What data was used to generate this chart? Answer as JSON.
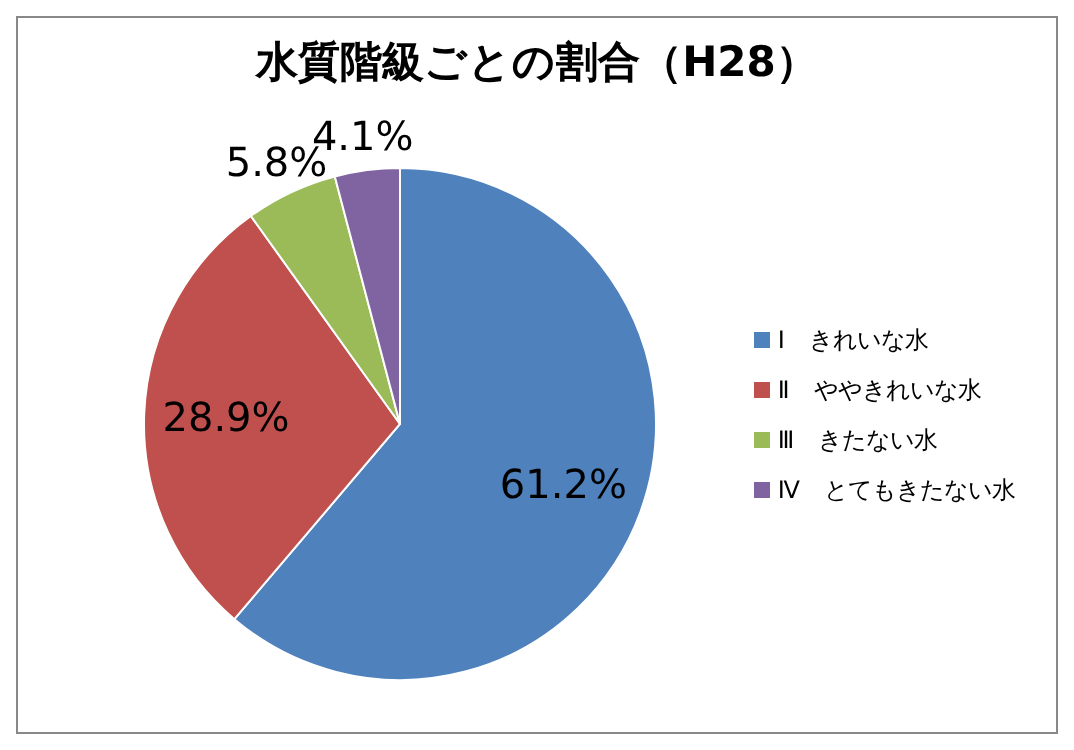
{
  "chart_data": {
    "type": "pie",
    "title": "水質階級ごとの割合（H28）",
    "categories": [
      "Ⅰ　きれいな水",
      "Ⅱ　ややきれいな水",
      "Ⅲ　きたない水",
      "Ⅳ　とてもきたない水"
    ],
    "values": [
      61.2,
      28.9,
      5.8,
      4.1
    ],
    "colors": [
      "#4f81bd",
      "#c0504d",
      "#9bbb59",
      "#8064a2"
    ],
    "value_labels": [
      "61.2%",
      "28.9%",
      "5.8%",
      "4.1%"
    ],
    "legend": "right"
  }
}
